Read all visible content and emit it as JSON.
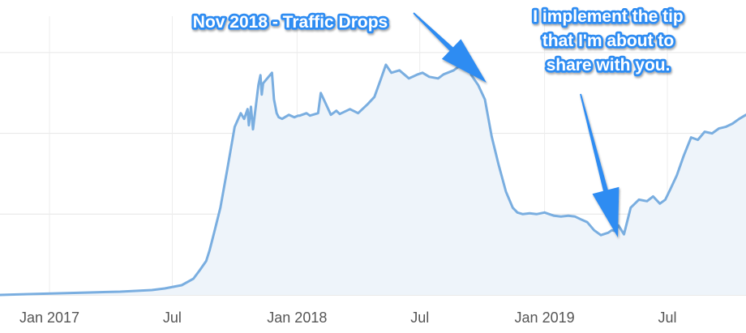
{
  "chart_data": {
    "type": "area",
    "title": "",
    "xlabel": "",
    "ylabel": "",
    "grid": true,
    "legend": "none",
    "x_ticks": [
      "Jan 2017",
      "Jul",
      "Jan 2018",
      "Jul",
      "Jan 2019",
      "Jul"
    ],
    "x_tick_dates": [
      "2017-01-01",
      "2017-07-01",
      "2018-01-01",
      "2018-07-01",
      "2019-01-01",
      "2019-07-01"
    ],
    "x_range": [
      "2016-10-20",
      "2019-10-25"
    ],
    "y_gridline_values": [
      1,
      2,
      3
    ],
    "ylim": [
      0,
      3.35
    ],
    "series": [
      {
        "color": "#7aaee0",
        "fill": "#eef4fa",
        "x": [
          "2016-10-20",
          "2016-12-01",
          "2017-01-15",
          "2017-03-01",
          "2017-04-15",
          "2017-06-01",
          "2017-06-20",
          "2017-07-15",
          "2017-08-01",
          "2017-08-10",
          "2017-08-20",
          "2017-08-25",
          "2017-09-01",
          "2017-09-10",
          "2017-09-20",
          "2017-10-01",
          "2017-10-10",
          "2017-10-15",
          "2017-10-20",
          "2017-10-22",
          "2017-10-25",
          "2017-10-28",
          "2017-11-05",
          "2017-11-08",
          "2017-11-10",
          "2017-11-12",
          "2017-11-25",
          "2017-11-28",
          "2017-12-02",
          "2017-12-05",
          "2017-12-10",
          "2017-12-20",
          "2017-12-28",
          "2018-01-03",
          "2018-01-05",
          "2018-01-15",
          "2018-01-20",
          "2018-02-01",
          "2018-02-05",
          "2018-02-20",
          "2018-02-28",
          "2018-03-05",
          "2018-03-20",
          "2018-04-01",
          "2018-04-15",
          "2018-04-25",
          "2018-05-05",
          "2018-05-12",
          "2018-05-20",
          "2018-06-01",
          "2018-06-15",
          "2018-06-28",
          "2018-07-05",
          "2018-07-15",
          "2018-07-28",
          "2018-08-05",
          "2018-08-20",
          "2018-08-28",
          "2018-09-01",
          "2018-09-08",
          "2018-09-15",
          "2018-09-25",
          "2018-10-05",
          "2018-10-15",
          "2018-10-25",
          "2018-11-05",
          "2018-11-15",
          "2018-11-22",
          "2018-11-30",
          "2018-12-10",
          "2018-12-20",
          "2019-01-01",
          "2019-01-15",
          "2019-01-25",
          "2019-02-05",
          "2019-02-15",
          "2019-02-25",
          "2019-03-05",
          "2019-03-15",
          "2019-03-25",
          "2019-04-05",
          "2019-04-10",
          "2019-04-15",
          "2019-04-20",
          "2019-04-28",
          "2019-05-08",
          "2019-05-20",
          "2019-06-01",
          "2019-06-10",
          "2019-06-20",
          "2019-06-28",
          "2019-07-05",
          "2019-07-15",
          "2019-07-25",
          "2019-08-05",
          "2019-08-15",
          "2019-08-25",
          "2019-09-05",
          "2019-09-15",
          "2019-09-25",
          "2019-10-05",
          "2019-10-15",
          "2019-10-25"
        ],
        "y": [
          0.0,
          0.01,
          0.02,
          0.03,
          0.04,
          0.06,
          0.08,
          0.12,
          0.2,
          0.3,
          0.42,
          0.55,
          0.78,
          1.08,
          1.55,
          2.08,
          2.25,
          2.18,
          2.3,
          2.1,
          2.33,
          2.05,
          2.6,
          2.72,
          2.48,
          2.62,
          2.75,
          2.42,
          2.25,
          2.2,
          2.18,
          2.23,
          2.2,
          2.22,
          2.22,
          2.25,
          2.22,
          2.25,
          2.5,
          2.23,
          2.28,
          2.24,
          2.3,
          2.25,
          2.36,
          2.45,
          2.68,
          2.85,
          2.75,
          2.78,
          2.68,
          2.73,
          2.75,
          2.7,
          2.68,
          2.73,
          2.78,
          2.83,
          2.9,
          2.92,
          2.72,
          2.6,
          2.42,
          1.96,
          1.62,
          1.28,
          1.08,
          1.02,
          1.0,
          1.01,
          1.0,
          1.02,
          0.98,
          0.97,
          0.98,
          0.97,
          0.93,
          0.9,
          0.8,
          0.74,
          0.77,
          0.8,
          0.79,
          0.86,
          0.75,
          1.08,
          1.18,
          1.16,
          1.22,
          1.13,
          1.18,
          1.3,
          1.48,
          1.72,
          1.95,
          1.92,
          2.02,
          2.0,
          2.06,
          2.08,
          2.12,
          2.18,
          2.23
        ]
      }
    ],
    "annotations": [
      {
        "lines": [
          "Nov 2018 - Traffic Drops"
        ],
        "color": "#2f8cf2"
      },
      {
        "lines": [
          "I implement the tip",
          "that I'm about to",
          "share with you."
        ],
        "color": "#2f8cf2"
      }
    ]
  }
}
